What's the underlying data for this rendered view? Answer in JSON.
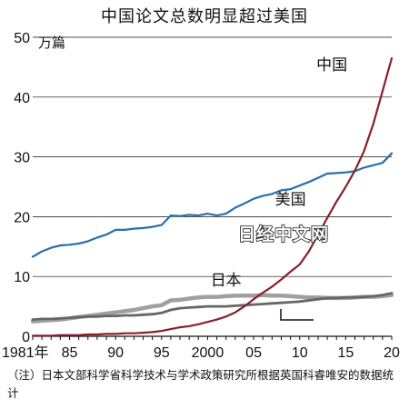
{
  "chart_data": {
    "type": "line",
    "title": "中国论文总数明显超过美国",
    "unit": "万篇",
    "ylim": [
      0,
      50
    ],
    "yticks": [
      "0",
      "10",
      "20",
      "30",
      "40",
      "50"
    ],
    "xlim": [
      1981,
      2020
    ],
    "xticks": [
      {
        "x": 1981,
        "label": "1981年"
      },
      {
        "x": 1985,
        "label": "85"
      },
      {
        "x": 1990,
        "label": "90"
      },
      {
        "x": 1995,
        "label": "95"
      },
      {
        "x": 2000,
        "label": "2000"
      },
      {
        "x": 2005,
        "label": "05"
      },
      {
        "x": 2010,
        "label": "10"
      },
      {
        "x": 2015,
        "label": "15"
      },
      {
        "x": 2020,
        "label": "20"
      }
    ],
    "series": [
      {
        "name": "美国",
        "color": "#2a6fa8",
        "x": [
          1981,
          1982,
          1983,
          1984,
          1985,
          1986,
          1987,
          1988,
          1989,
          1990,
          1991,
          1992,
          1993,
          1994,
          1995,
          1996,
          1997,
          1998,
          1999,
          2000,
          2001,
          2002,
          2003,
          2004,
          2005,
          2006,
          2007,
          2008,
          2009,
          2010,
          2011,
          2012,
          2013,
          2014,
          2015,
          2016,
          2017,
          2018,
          2019,
          2020
        ],
        "values": [
          13.3,
          14.2,
          14.8,
          15.2,
          15.3,
          15.5,
          15.9,
          16.5,
          17.0,
          17.8,
          17.8,
          18.0,
          18.1,
          18.3,
          18.6,
          20.2,
          20.1,
          20.3,
          20.2,
          20.5,
          20.2,
          20.5,
          21.5,
          22.2,
          23.0,
          23.5,
          23.8,
          24.4,
          24.6,
          25.2,
          25.8,
          26.5,
          27.2,
          27.3,
          27.4,
          27.6,
          28.2,
          28.6,
          29.0,
          30.6
        ]
      },
      {
        "name": "中国",
        "color": "#8b1e2b",
        "x": [
          1981,
          1982,
          1983,
          1984,
          1985,
          1986,
          1987,
          1988,
          1989,
          1990,
          1991,
          1992,
          1993,
          1994,
          1995,
          1996,
          1997,
          1998,
          1999,
          2000,
          2001,
          2002,
          2003,
          2004,
          2005,
          2006,
          2007,
          2008,
          2009,
          2010,
          2011,
          2012,
          2013,
          2014,
          2015,
          2016,
          2017,
          2018,
          2019,
          2020
        ],
        "values": [
          0.1,
          0.1,
          0.1,
          0.2,
          0.2,
          0.2,
          0.3,
          0.3,
          0.4,
          0.4,
          0.5,
          0.5,
          0.6,
          0.7,
          0.9,
          1.2,
          1.5,
          1.7,
          2.0,
          2.4,
          2.8,
          3.3,
          4.0,
          5.0,
          6.2,
          7.3,
          8.3,
          9.5,
          10.8,
          12.0,
          14.2,
          17.0,
          19.8,
          22.5,
          25.0,
          27.7,
          31.0,
          35.5,
          41.0,
          46.5
        ]
      },
      {
        "name": "日本",
        "color": "#a0a0a0",
        "x": [
          1981,
          1982,
          1983,
          1984,
          1985,
          1986,
          1987,
          1988,
          1989,
          1990,
          1991,
          1992,
          1993,
          1994,
          1995,
          1996,
          1997,
          1998,
          1999,
          2000,
          2001,
          2002,
          2003,
          2004,
          2005,
          2006,
          2007,
          2008,
          2009,
          2010,
          2011,
          2012,
          2013,
          2014,
          2015,
          2016,
          2017,
          2018,
          2019,
          2020
        ],
        "values": [
          2.5,
          2.6,
          2.7,
          2.8,
          3.0,
          3.2,
          3.4,
          3.6,
          3.8,
          4.0,
          4.2,
          4.4,
          4.7,
          5.0,
          5.2,
          6.0,
          6.1,
          6.3,
          6.5,
          6.6,
          6.6,
          6.7,
          6.8,
          6.8,
          6.8,
          6.9,
          6.8,
          6.8,
          6.7,
          6.6,
          6.5,
          6.5,
          6.4,
          6.4,
          6.4,
          6.5,
          6.6,
          6.6,
          6.7,
          6.9
        ]
      },
      {
        "name": "",
        "color": "#666666",
        "x": [
          1981,
          1982,
          1983,
          1984,
          1985,
          1986,
          1987,
          1988,
          1989,
          1990,
          1991,
          1992,
          1993,
          1994,
          1995,
          1996,
          1997,
          1998,
          1999,
          2000,
          2001,
          2002,
          2003,
          2004,
          2005,
          2006,
          2007,
          2008,
          2009,
          2010,
          2011,
          2012,
          2013,
          2014,
          2015,
          2016,
          2017,
          2018,
          2019,
          2020
        ],
        "values": [
          2.8,
          2.9,
          2.9,
          3.0,
          3.1,
          3.2,
          3.3,
          3.3,
          3.4,
          3.4,
          3.5,
          3.5,
          3.6,
          3.7,
          3.9,
          4.4,
          4.7,
          4.8,
          4.9,
          5.0,
          5.0,
          5.0,
          5.1,
          5.2,
          5.3,
          5.4,
          5.5,
          5.6,
          5.7,
          5.8,
          6.0,
          6.2,
          6.4,
          6.4,
          6.5,
          6.5,
          6.6,
          6.7,
          6.9,
          7.2
        ]
      }
    ],
    "watermark": "日经中文网",
    "note": "（注）日本文部科学省科学技术与学术政策研究所根据英国科睿唯安的数据统计"
  }
}
